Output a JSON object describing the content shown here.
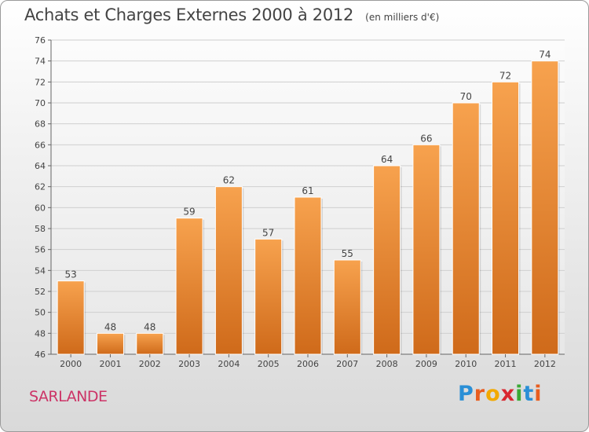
{
  "chart_data": {
    "type": "bar",
    "title": "Achats et Charges Externes 2000 à 2012",
    "subtitle": "(en milliers d'€)",
    "categories": [
      "2000",
      "2001",
      "2002",
      "2003",
      "2004",
      "2005",
      "2006",
      "2007",
      "2008",
      "2009",
      "2010",
      "2011",
      "2012"
    ],
    "values": [
      53,
      48,
      48,
      59,
      62,
      57,
      61,
      55,
      64,
      66,
      70,
      72,
      74
    ],
    "ylim": [
      46,
      76
    ],
    "yticks": [
      "46",
      "48",
      "50",
      "52",
      "54",
      "56",
      "58",
      "60",
      "62",
      "64",
      "66",
      "68",
      "70",
      "72",
      "74",
      "76"
    ],
    "grid": true,
    "colors": {
      "bar_light": "#f7a24e",
      "bar_dark": "#cf6a1a",
      "grid": "#cfcfcf"
    }
  },
  "footer": {
    "place": "SARLANDE",
    "logo": {
      "text": "Proxiti",
      "letters": [
        {
          "ch": "P",
          "color": "#2a8fd6"
        },
        {
          "ch": "r",
          "color": "#e85d1f"
        },
        {
          "ch": "o",
          "color": "#f2a900"
        },
        {
          "ch": "x",
          "color": "#d9262f"
        },
        {
          "ch": "i",
          "color": "#3aa935"
        },
        {
          "ch": "t",
          "color": "#2a8fd6"
        },
        {
          "ch": "i",
          "color": "#e85d1f"
        }
      ]
    }
  }
}
